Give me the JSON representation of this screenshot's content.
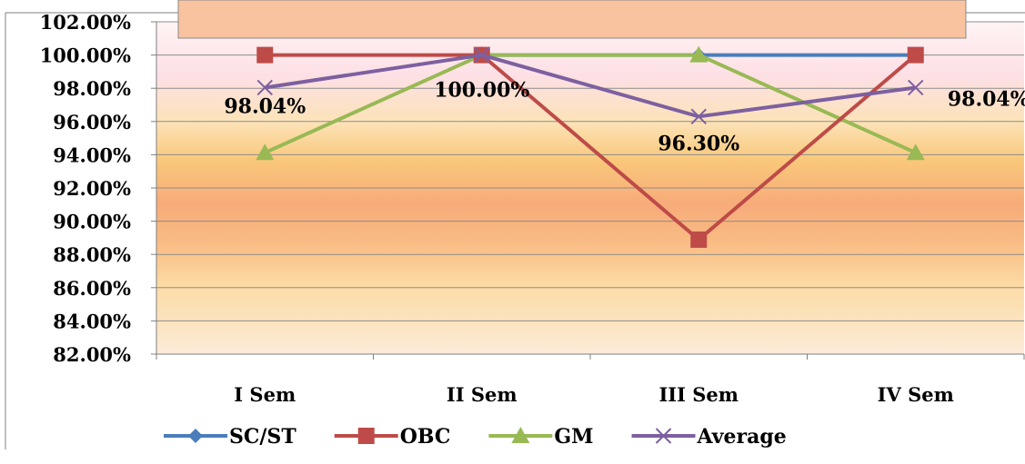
{
  "chart_data": {
    "type": "line",
    "title": "",
    "xlabel": "",
    "ylabel": "",
    "categories": [
      "I Sem",
      "II Sem",
      "III Sem",
      "IV Sem"
    ],
    "ylim": [
      82,
      102
    ],
    "yticks": [
      "82.00%",
      "84.00%",
      "86.00%",
      "88.00%",
      "90.00%",
      "92.00%",
      "94.00%",
      "96.00%",
      "98.00%",
      "100.00%",
      "102.00%"
    ],
    "y_unit": "%",
    "grid": true,
    "legend_position": "bottom",
    "series": [
      {
        "name": "SC/ST",
        "values": [
          null,
          100,
          100,
          100
        ],
        "color": "#4a7ebb",
        "marker": "diamond"
      },
      {
        "name": "OBC",
        "values": [
          100,
          100,
          88.89,
          100
        ],
        "color": "#be4b48",
        "marker": "square"
      },
      {
        "name": "GM",
        "values": [
          94.12,
          100,
          100,
          94.12
        ],
        "color": "#98b954",
        "marker": "triangle"
      },
      {
        "name": "Average",
        "values": [
          98.04,
          100,
          96.3,
          98.04
        ],
        "color": "#7d60a0",
        "marker": "x"
      }
    ],
    "data_labels": [
      {
        "series": "Average",
        "index": 0,
        "text": "98.04%"
      },
      {
        "series": "Average",
        "index": 1,
        "text": "100.00%"
      },
      {
        "series": "Average",
        "index": 2,
        "text": "96.30%"
      },
      {
        "series": "Average",
        "index": 3,
        "text": "98.04%"
      }
    ]
  }
}
